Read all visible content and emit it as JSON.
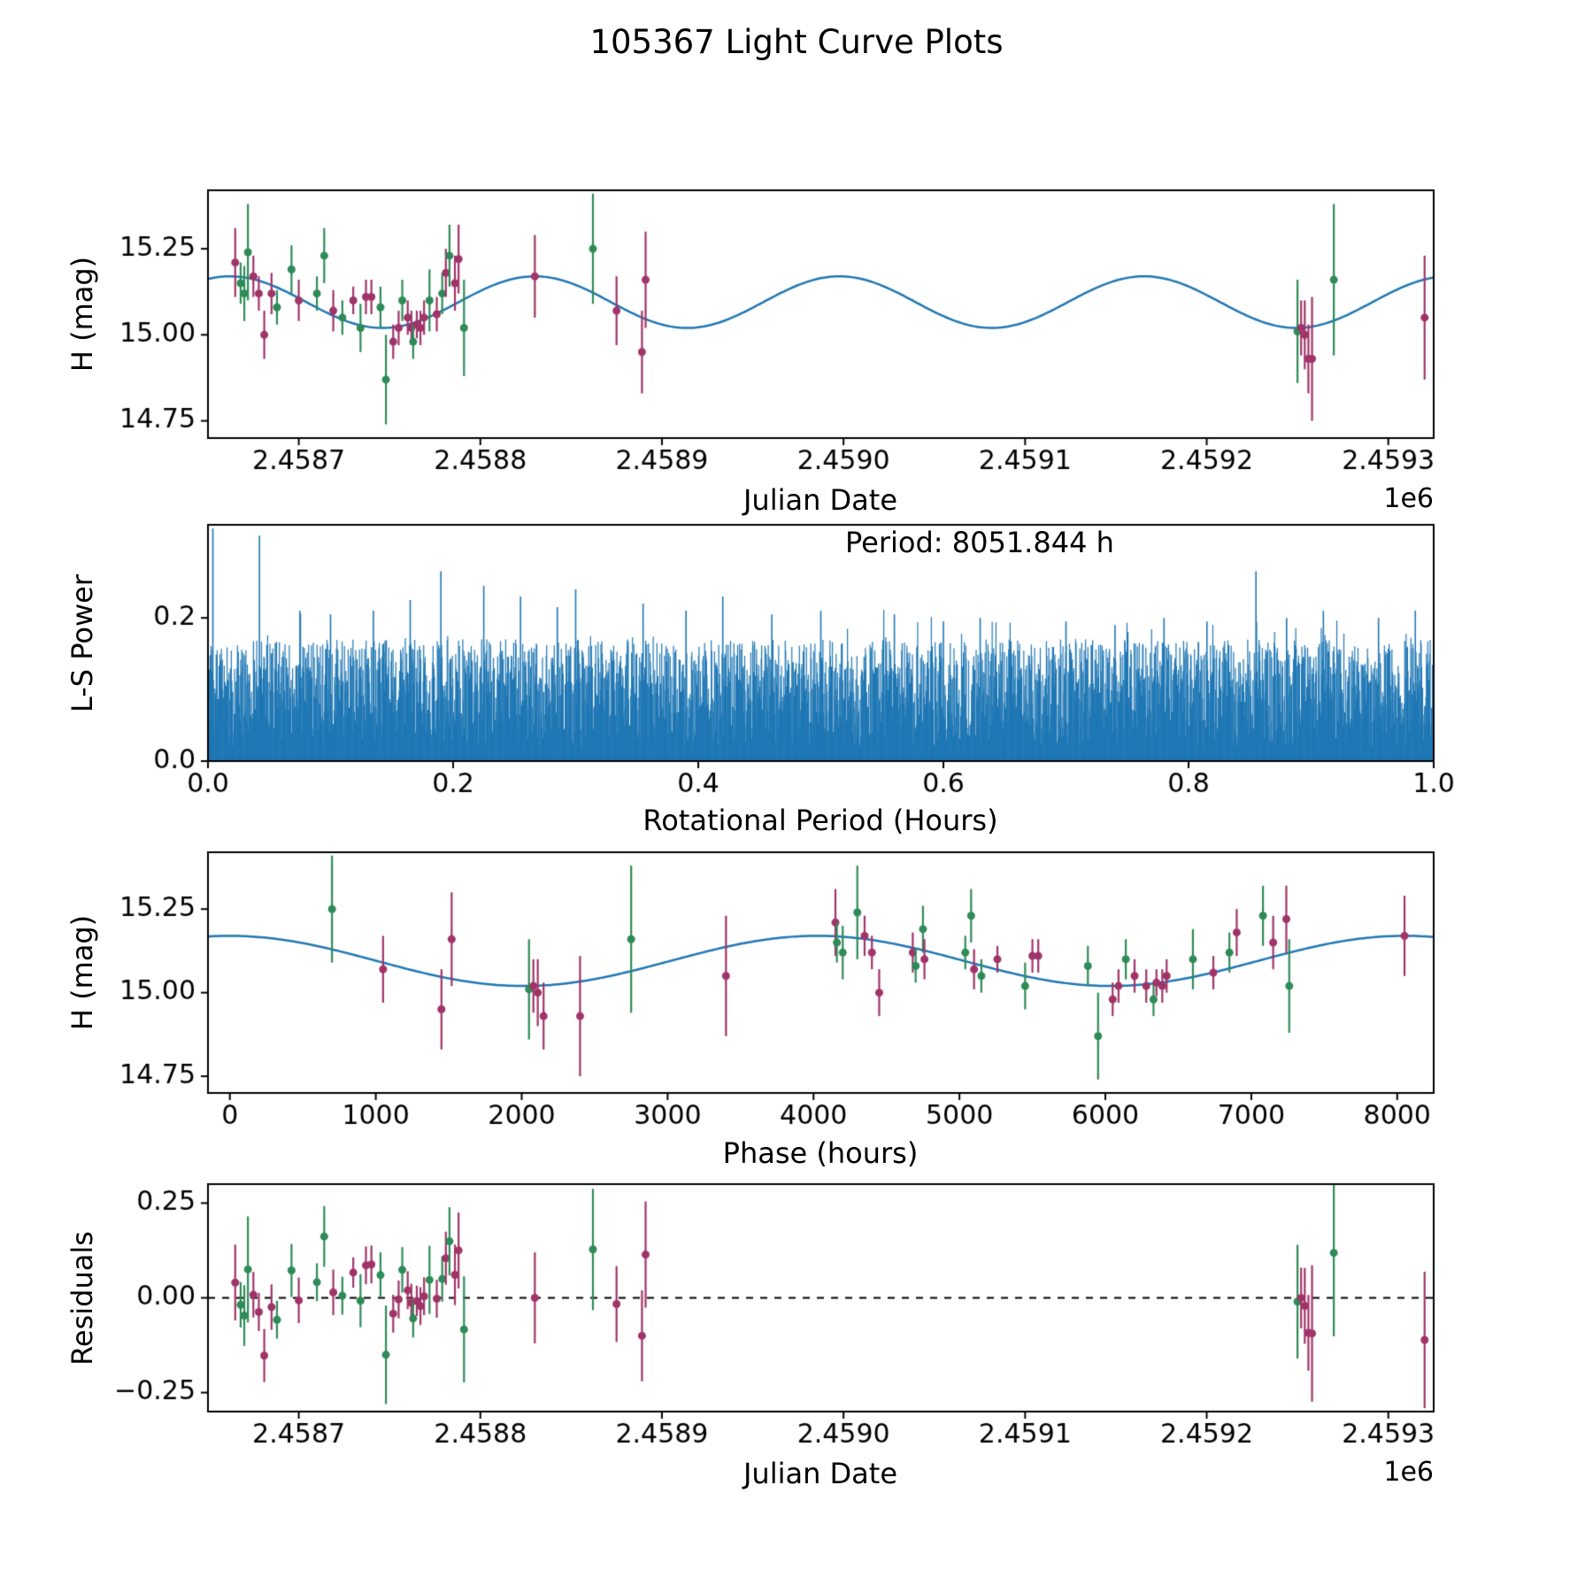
{
  "title": "105367 Light Curve Plots",
  "chart_data": {
    "type": "scatter",
    "figure_title": "105367 Light Curve Plots",
    "series_colors": {
      "g": "#2e8b57",
      "m": "#a03468"
    },
    "fit_color": "#1f77b4",
    "fit": {
      "mean_mag": 15.095,
      "amplitude_mag": 0.075,
      "period_hours": 8051.844,
      "curve_period_days": 167.7467,
      "curve_max_jd": 2458662.25
    },
    "observations_columns": [
      "jd_1e6",
      "phase_hours",
      "h_mag",
      "h_err",
      "series"
    ],
    "observations": [
      [
        2.458665,
        4150,
        15.21,
        0.1,
        "m"
      ],
      [
        2.458668,
        4160,
        15.15,
        0.06,
        "g"
      ],
      [
        2.45867,
        4200,
        15.12,
        0.08,
        "g"
      ],
      [
        2.458672,
        4300,
        15.24,
        0.14,
        "g"
      ],
      [
        2.458675,
        4350,
        15.17,
        0.06,
        "m"
      ],
      [
        2.458678,
        4400,
        15.12,
        0.05,
        "m"
      ],
      [
        2.458681,
        4450,
        15.0,
        0.07,
        "m"
      ],
      [
        2.458685,
        4680,
        15.12,
        0.06,
        "m"
      ],
      [
        2.458688,
        4700,
        15.08,
        0.05,
        "g"
      ],
      [
        2.458696,
        4750,
        15.19,
        0.07,
        "g"
      ],
      [
        2.4587,
        4760,
        15.1,
        0.06,
        "m"
      ],
      [
        2.45871,
        5040,
        15.12,
        0.05,
        "g"
      ],
      [
        2.458714,
        5080,
        15.23,
        0.08,
        "g"
      ],
      [
        2.458719,
        5100,
        15.07,
        0.06,
        "m"
      ],
      [
        2.458724,
        5150,
        15.05,
        0.05,
        "g"
      ],
      [
        2.45873,
        5260,
        15.1,
        0.04,
        "m"
      ],
      [
        2.458734,
        5450,
        15.02,
        0.07,
        "g"
      ],
      [
        2.458737,
        5500,
        15.11,
        0.05,
        "m"
      ],
      [
        2.45874,
        5540,
        15.11,
        0.05,
        "m"
      ],
      [
        2.458745,
        5880,
        15.08,
        0.06,
        "g"
      ],
      [
        2.458748,
        5950,
        14.87,
        0.13,
        "g"
      ],
      [
        2.458752,
        6050,
        14.98,
        0.05,
        "m"
      ],
      [
        2.458755,
        6090,
        15.02,
        0.05,
        "m"
      ],
      [
        2.458757,
        6140,
        15.1,
        0.06,
        "g"
      ],
      [
        2.45876,
        6200,
        15.05,
        0.05,
        "m"
      ],
      [
        2.458762,
        6280,
        15.02,
        0.05,
        "m"
      ],
      [
        2.458763,
        6330,
        14.98,
        0.05,
        "g"
      ],
      [
        2.458765,
        6350,
        15.03,
        0.04,
        "m"
      ],
      [
        2.458767,
        6390,
        15.02,
        0.05,
        "m"
      ],
      [
        2.458769,
        6420,
        15.05,
        0.05,
        "m"
      ],
      [
        2.458772,
        6600,
        15.1,
        0.09,
        "g"
      ],
      [
        2.458776,
        6740,
        15.06,
        0.05,
        "m"
      ],
      [
        2.458779,
        6850,
        15.12,
        0.06,
        "g"
      ],
      [
        2.458781,
        6900,
        15.18,
        0.07,
        "m"
      ],
      [
        2.458783,
        7080,
        15.23,
        0.09,
        "g"
      ],
      [
        2.458786,
        7150,
        15.15,
        0.08,
        "m"
      ],
      [
        2.458788,
        7240,
        15.22,
        0.1,
        "m"
      ],
      [
        2.458791,
        7260,
        15.02,
        0.14,
        "g"
      ],
      [
        2.45883,
        8050,
        15.17,
        0.12,
        "m"
      ],
      [
        2.458862,
        700,
        15.25,
        0.16,
        "g"
      ],
      [
        2.458875,
        1050,
        15.07,
        0.1,
        "m"
      ],
      [
        2.458889,
        1450,
        14.95,
        0.12,
        "m"
      ],
      [
        2.458891,
        1520,
        15.16,
        0.14,
        "m"
      ],
      [
        2.45925,
        2050,
        15.01,
        0.15,
        "g"
      ],
      [
        2.459252,
        2080,
        15.02,
        0.08,
        "m"
      ],
      [
        2.459254,
        2110,
        15.0,
        0.1,
        "m"
      ],
      [
        2.459256,
        2150,
        14.93,
        0.1,
        "m"
      ],
      [
        2.459258,
        2400,
        14.93,
        0.18,
        "m"
      ],
      [
        2.45927,
        2750,
        15.16,
        0.22,
        "g"
      ],
      [
        2.45932,
        3400,
        15.05,
        0.18,
        "m"
      ]
    ],
    "panels": [
      {
        "id": "jd-lightcurve",
        "type": "errorbar-scatter-with-fit",
        "ylabel": "H (mag)",
        "xlabel": "Julian Date",
        "x_offset_label": "1e6",
        "xlim": [
          2.45865,
          2.459325
        ],
        "ylim": [
          14.7,
          15.42
        ],
        "xticks": [
          2.4587,
          2.4588,
          2.4589,
          2.459,
          2.4591,
          2.4592,
          2.4593
        ],
        "xtick_labels": [
          "2.4587",
          "2.4588",
          "2.4589",
          "2.4590",
          "2.4591",
          "2.4592",
          "2.4593"
        ],
        "yticks": [
          14.75,
          15.0,
          15.25
        ],
        "ytick_labels": [
          "14.75",
          "15.00",
          "15.25"
        ]
      },
      {
        "id": "periodogram",
        "type": "line",
        "ylabel": "L-S Power",
        "xlabel": "Rotational Period (Hours)",
        "annotation": "Period: 8051.844 h",
        "xlim": [
          0,
          1
        ],
        "ylim": [
          0,
          0.33
        ],
        "xticks": [
          0.0,
          0.2,
          0.4,
          0.6,
          0.8,
          1.0
        ],
        "xtick_labels": [
          "0.0",
          "0.2",
          "0.4",
          "0.6",
          "0.8",
          "1.0"
        ],
        "yticks": [
          0.0,
          0.2
        ],
        "ytick_labels": [
          "0.0",
          "0.2"
        ],
        "noise": {
          "seed": 20240613,
          "n_lines": 2600,
          "base": 0.02,
          "span": 0.15,
          "pow": 0.8
        },
        "peaks": [
          [
            0.004,
            0.325
          ],
          [
            0.042,
            0.315
          ],
          [
            0.075,
            0.21
          ],
          [
            0.1,
            0.205
          ],
          [
            0.135,
            0.21
          ],
          [
            0.165,
            0.225
          ],
          [
            0.19,
            0.265
          ],
          [
            0.225,
            0.245
          ],
          [
            0.255,
            0.23
          ],
          [
            0.285,
            0.215
          ],
          [
            0.3,
            0.24
          ],
          [
            0.355,
            0.22
          ],
          [
            0.39,
            0.21
          ],
          [
            0.42,
            0.23
          ],
          [
            0.46,
            0.205
          ],
          [
            0.5,
            0.21
          ],
          [
            0.56,
            0.205
          ],
          [
            0.6,
            0.195
          ],
          [
            0.63,
            0.2
          ],
          [
            0.7,
            0.195
          ],
          [
            0.74,
            0.19
          ],
          [
            0.78,
            0.2
          ],
          [
            0.815,
            0.195
          ],
          [
            0.855,
            0.265
          ],
          [
            0.88,
            0.2
          ],
          [
            0.91,
            0.21
          ],
          [
            0.955,
            0.2
          ],
          [
            0.985,
            0.21
          ]
        ]
      },
      {
        "id": "phase-lightcurve",
        "type": "errorbar-scatter-with-fit",
        "ylabel": "H (mag)",
        "xlabel": "Phase (hours)",
        "xlim": [
          -150,
          8250
        ],
        "ylim": [
          14.7,
          15.42
        ],
        "xticks": [
          0,
          1000,
          2000,
          3000,
          4000,
          5000,
          6000,
          7000,
          8000
        ],
        "xtick_labels": [
          "0",
          "1000",
          "2000",
          "3000",
          "4000",
          "5000",
          "6000",
          "7000",
          "8000"
        ],
        "yticks": [
          14.75,
          15.0,
          15.25
        ],
        "ytick_labels": [
          "14.75",
          "15.00",
          "15.25"
        ]
      },
      {
        "id": "residuals",
        "type": "errorbar-scatter",
        "ylabel": "Residuals",
        "xlabel": "Julian Date",
        "x_offset_label": "1e6",
        "zero_line": true,
        "xlim": [
          2.45865,
          2.459325
        ],
        "ylim": [
          -0.3,
          0.3
        ],
        "xticks": [
          2.4587,
          2.4588,
          2.4589,
          2.459,
          2.4591,
          2.4592,
          2.4593
        ],
        "xtick_labels": [
          "2.4587",
          "2.4588",
          "2.4589",
          "2.4590",
          "2.4591",
          "2.4592",
          "2.4593"
        ],
        "yticks": [
          -0.25,
          0.0,
          0.25
        ],
        "ytick_labels": [
          "−0.25",
          "0.00",
          "0.25"
        ]
      }
    ]
  }
}
